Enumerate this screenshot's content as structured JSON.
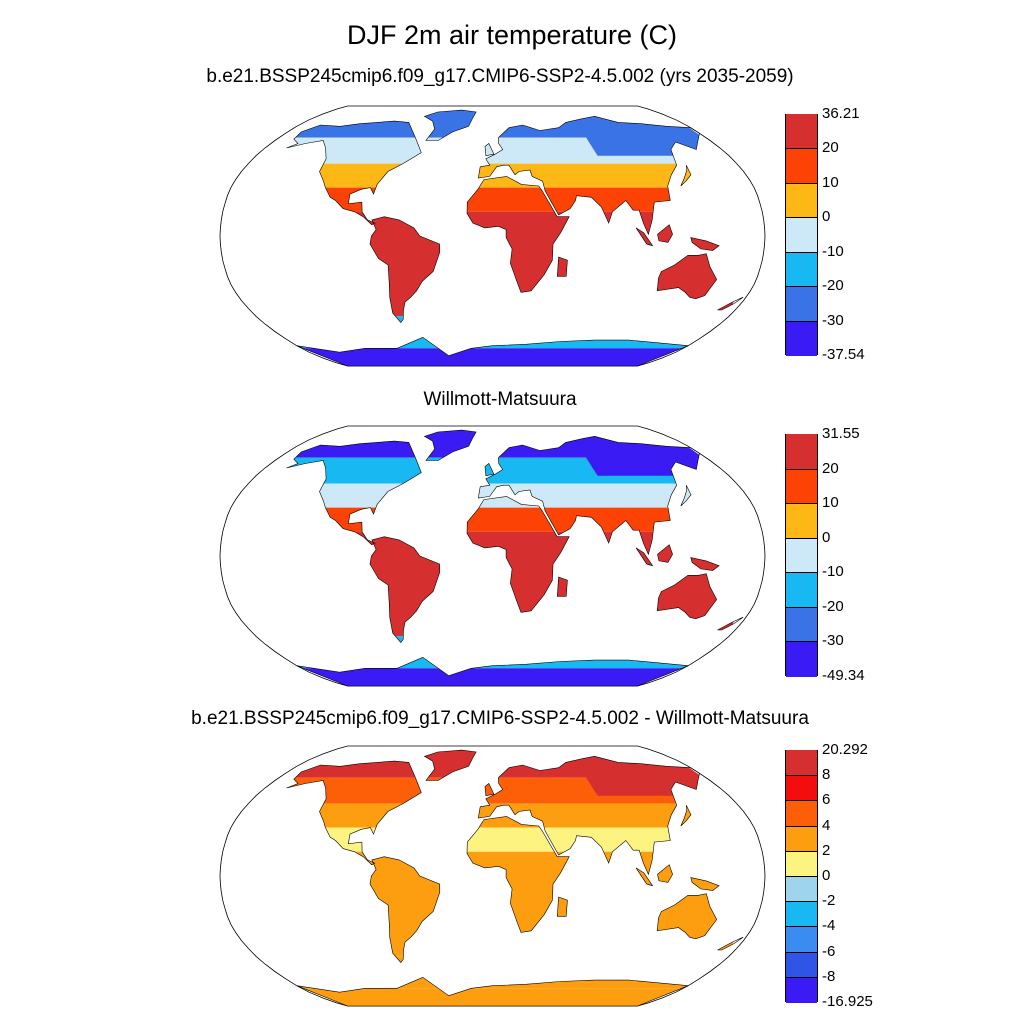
{
  "title": "DJF 2m air temperature (C)",
  "panels": [
    {
      "title": "b.e21.BSSP245cmip6.f09_g17.CMIP6-SSP2-4.5.002 (yrs 2035-2059)",
      "colorbar": {
        "labels": [
          "36.21",
          "20",
          "10",
          "0",
          "-10",
          "-20",
          "-30",
          "-37.54"
        ],
        "colors": [
          "#d62f2f",
          "#fd4206",
          "#fdb815",
          "#cde8f7",
          "#18b8f3",
          "#3a73e6",
          "#3b1bf3"
        ]
      },
      "region_colors": {
        "arctic": "#3a73e6",
        "north": "#cde8f7",
        "mid": "#fdb815",
        "subtropics": "#fd4206",
        "tropics": "#d62f2f",
        "siberia": "#3a73e6",
        "antarctica": "#18b8f3",
        "antarctica_deep": "#3b1bf3"
      }
    },
    {
      "title": "Willmott-Matsuura",
      "colorbar": {
        "labels": [
          "31.55",
          "20",
          "10",
          "0",
          "-10",
          "-20",
          "-30",
          "-49.34"
        ],
        "colors": [
          "#d62f2f",
          "#fd4206",
          "#fdb815",
          "#cde8f7",
          "#18b8f3",
          "#3a73e6",
          "#3b1bf3"
        ]
      },
      "region_colors": {
        "arctic": "#3b1bf3",
        "north": "#18b8f3",
        "mid": "#cde8f7",
        "subtropics": "#fd4206",
        "tropics": "#d62f2f",
        "siberia": "#3b1bf3",
        "antarctica": "#18b8f3",
        "antarctica_deep": "#3b1bf3"
      }
    },
    {
      "title": "b.e21.BSSP245cmip6.f09_g17.CMIP6-SSP2-4.5.002 - Willmott-Matsuura",
      "colorbar": {
        "labels": [
          "20.292",
          "8",
          "6",
          "4",
          "2",
          "0",
          "-2",
          "-4",
          "-6",
          "-8",
          "-16.925"
        ],
        "colors": [
          "#d62f2f",
          "#f40d0d",
          "#fd5f08",
          "#fd9d10",
          "#fdf380",
          "#9fd4ee",
          "#18b8f3",
          "#3a8cf0",
          "#2e55e6",
          "#3b1bf3"
        ]
      },
      "region_colors": {
        "arctic": "#d62f2f",
        "north": "#fd5f08",
        "mid": "#fd9d10",
        "subtropics": "#fdf380",
        "tropics": "#fd9d10",
        "siberia": "#d62f2f",
        "antarctica": "#fd9d10",
        "antarctica_deep": "#fd9d10"
      }
    }
  ]
}
